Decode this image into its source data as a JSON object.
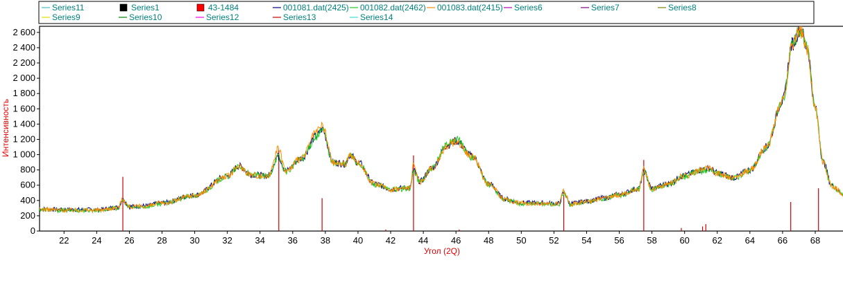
{
  "chart_data": {
    "type": "line",
    "xlabel": "Угол (2Q)",
    "ylabel": "Интенсивность",
    "xlim": [
      20.5,
      69.7
    ],
    "ylim": [
      0,
      2680
    ],
    "x_ticks": [
      22,
      24,
      26,
      28,
      30,
      32,
      34,
      36,
      38,
      40,
      42,
      44,
      46,
      48,
      50,
      52,
      54,
      56,
      58,
      60,
      62,
      64,
      66,
      68
    ],
    "x_tick_labels": [
      "22",
      "24",
      "26",
      "28",
      "30",
      "32",
      "34",
      "36",
      "38",
      "40",
      "42",
      "44",
      "46",
      "48",
      "50",
      "52",
      "54",
      "56",
      "58",
      "60",
      "62",
      "64",
      "66",
      "68"
    ],
    "y_ticks": [
      0,
      200,
      400,
      600,
      800,
      1000,
      1200,
      1400,
      1600,
      1800,
      2000,
      2200,
      2400,
      2600
    ],
    "y_tick_labels": [
      "0",
      "200",
      "400",
      "600",
      "800",
      "1 000",
      "1 200",
      "1 400",
      "1 600",
      "1 800",
      "2 000",
      "2 200",
      "2 400",
      "2 600"
    ],
    "legend": {
      "placement": "top",
      "entries": [
        {
          "label": "Series11",
          "color": "#40c0c0",
          "marker": "line"
        },
        {
          "label": "Series1",
          "color": "#000000",
          "marker": "square"
        },
        {
          "label": "43-1484",
          "color": "#ff0000",
          "marker": "square"
        },
        {
          "label": "001081.dat(2425)",
          "color": "#00008b",
          "marker": "line"
        },
        {
          "label": "001082.dat(2462)",
          "color": "#22cc22",
          "marker": "line"
        },
        {
          "label": "001083.dat(2415)",
          "color": "#ff8c00",
          "marker": "line"
        },
        {
          "label": "Series6",
          "color": "#b000b0",
          "marker": "line"
        },
        {
          "label": "Series7",
          "color": "#800080",
          "marker": "line"
        },
        {
          "label": "Series8",
          "color": "#808000",
          "marker": "line"
        },
        {
          "label": "Series9",
          "color": "#e0e000",
          "marker": "line"
        },
        {
          "label": "Series10",
          "color": "#008000",
          "marker": "line"
        },
        {
          "label": "Series12",
          "color": "#ff00ff",
          "marker": "line"
        },
        {
          "label": "Series13",
          "color": "#cc0000",
          "marker": "line"
        },
        {
          "label": "Series14",
          "color": "#40e0d0",
          "marker": "line"
        }
      ]
    },
    "series": [
      {
        "name": "001081.dat(2425)",
        "color": "#00008b",
        "x": [
          20.5,
          22,
          24,
          25.3,
          25.6,
          26,
          27,
          28,
          30,
          32,
          32.7,
          33.5,
          34.5,
          35.1,
          35.6,
          36.5,
          37.5,
          37.8,
          38.5,
          39.2,
          39.5,
          40,
          41,
          42,
          43.2,
          43.4,
          43.8,
          44.5,
          45.5,
          46,
          47,
          48,
          49,
          50,
          51,
          52.3,
          52.6,
          53,
          54,
          55,
          56,
          57.2,
          57.5,
          58,
          59,
          60,
          61,
          61.5,
          62,
          63,
          64,
          65,
          66,
          66.6,
          67.1,
          67.5,
          68,
          68.5,
          69,
          69.7
        ],
        "y": [
          290,
          280,
          280,
          310,
          410,
          320,
          330,
          370,
          470,
          720,
          850,
          740,
          720,
          980,
          790,
          950,
          1250,
          1330,
          900,
          880,
          1000,
          900,
          620,
          550,
          570,
          790,
          650,
          820,
          1130,
          1180,
          980,
          620,
          420,
          370,
          370,
          360,
          500,
          360,
          390,
          430,
          480,
          560,
          780,
          560,
          620,
          730,
          800,
          820,
          760,
          700,
          800,
          1100,
          1700,
          2450,
          2650,
          2400,
          1600,
          900,
          600,
          490
        ]
      },
      {
        "name": "001082.dat(2462)",
        "color": "#22cc22",
        "x": [
          20.5,
          22,
          24,
          25.3,
          25.6,
          26,
          27,
          28,
          30,
          32,
          32.7,
          33.5,
          34.5,
          35.1,
          35.6,
          36.5,
          37.5,
          37.8,
          38.5,
          39.2,
          39.5,
          40,
          41,
          42,
          43.2,
          43.4,
          43.8,
          44.5,
          45.5,
          46,
          47,
          48,
          49,
          50,
          51,
          52.3,
          52.6,
          53,
          54,
          55,
          56,
          57.2,
          57.5,
          58,
          59,
          60,
          61,
          61.5,
          62,
          63,
          64,
          65,
          66,
          66.6,
          67.1,
          67.5,
          68,
          68.5,
          69,
          69.7
        ],
        "y": [
          280,
          270,
          270,
          300,
          400,
          310,
          320,
          360,
          460,
          710,
          840,
          730,
          710,
          970,
          780,
          940,
          1240,
          1320,
          890,
          870,
          990,
          890,
          610,
          540,
          560,
          780,
          640,
          810,
          1150,
          1200,
          970,
          610,
          410,
          360,
          360,
          350,
          490,
          350,
          380,
          420,
          470,
          550,
          770,
          550,
          610,
          720,
          790,
          810,
          750,
          690,
          790,
          1090,
          1690,
          2440,
          2640,
          2390,
          1590,
          890,
          590,
          480
        ]
      },
      {
        "name": "001083.dat(2415)",
        "color": "#ff8c00",
        "x": [
          20.5,
          22,
          24,
          25.3,
          25.6,
          26,
          27,
          28,
          30,
          32,
          32.7,
          33.5,
          34.5,
          35.1,
          35.6,
          36.5,
          37.5,
          37.8,
          38.5,
          39.2,
          39.5,
          40,
          41,
          42,
          43.2,
          43.4,
          43.8,
          44.5,
          45.5,
          46,
          47,
          48,
          49,
          50,
          51,
          52.3,
          52.6,
          53,
          54,
          55,
          56,
          57.2,
          57.5,
          58,
          59,
          60,
          61,
          61.5,
          62,
          63,
          64,
          65,
          66,
          66.6,
          67.1,
          67.5,
          68,
          68.5,
          69,
          69.7
        ],
        "y": [
          285,
          275,
          275,
          305,
          420,
          315,
          325,
          365,
          465,
          715,
          845,
          735,
          715,
          1080,
          785,
          945,
          1300,
          1380,
          895,
          875,
          995,
          895,
          615,
          545,
          565,
          860,
          645,
          815,
          1120,
          1170,
          975,
          615,
          415,
          365,
          365,
          355,
          520,
          355,
          385,
          425,
          475,
          555,
          800,
          555,
          615,
          725,
          795,
          815,
          755,
          695,
          795,
          1095,
          1695,
          2430,
          2620,
          2380,
          1595,
          895,
          595,
          485
        ]
      },
      {
        "name": "43-1484",
        "color": "#cc0000",
        "type": "stick",
        "x": [
          25.6,
          35.15,
          37.8,
          41.7,
          43.4,
          46.2,
          52.6,
          57.5,
          59.8,
          61.1,
          61.3,
          66.5,
          68.2
        ],
        "y": [
          710,
          1070,
          430,
          20,
          990,
          20,
          470,
          930,
          40,
          60,
          90,
          380,
          560
        ]
      }
    ]
  }
}
